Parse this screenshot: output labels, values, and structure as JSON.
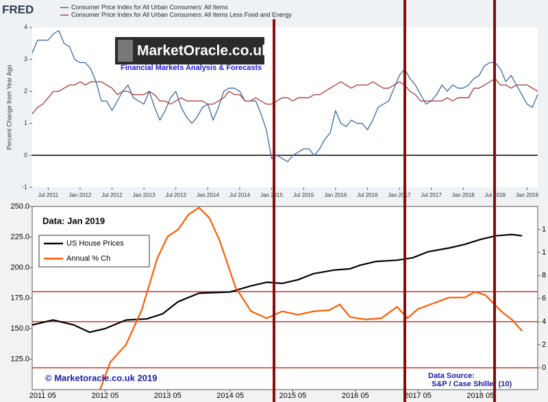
{
  "chart_data": [
    {
      "type": "line",
      "source_logo": "FRED",
      "y_label": "Percent Change from Year Ago",
      "watermark": "MarketOracle.co.uk",
      "watermark_subtitle": "Financial Markets Analysis & Forecasts",
      "x": [
        "2011-04",
        "2011-05",
        "2011-06",
        "2011-07",
        "2011-08",
        "2011-09",
        "2011-10",
        "2011-11",
        "2011-12",
        "2012-01",
        "2012-02",
        "2012-03",
        "2012-04",
        "2012-05",
        "2012-06",
        "2012-07",
        "2012-08",
        "2012-09",
        "2012-10",
        "2012-11",
        "2012-12",
        "2013-01",
        "2013-02",
        "2013-03",
        "2013-04",
        "2013-05",
        "2013-06",
        "2013-07",
        "2013-08",
        "2013-09",
        "2013-10",
        "2013-11",
        "2013-12",
        "2014-01",
        "2014-02",
        "2014-03",
        "2014-04",
        "2014-05",
        "2014-06",
        "2014-07",
        "2014-08",
        "2014-09",
        "2014-10",
        "2014-11",
        "2014-12",
        "2015-01",
        "2015-02",
        "2015-03",
        "2015-04",
        "2015-05",
        "2015-06",
        "2015-07",
        "2015-08",
        "2015-09",
        "2015-10",
        "2015-11",
        "2015-12",
        "2016-01",
        "2016-02",
        "2016-03",
        "2016-04",
        "2016-05",
        "2016-06",
        "2016-07",
        "2016-08",
        "2016-09",
        "2016-10",
        "2016-11",
        "2016-12",
        "2017-01",
        "2017-02",
        "2017-03",
        "2017-04",
        "2017-05",
        "2017-06",
        "2017-07",
        "2017-08",
        "2017-09",
        "2017-10",
        "2017-11",
        "2017-12",
        "2018-01",
        "2018-02",
        "2018-03",
        "2018-04",
        "2018-05",
        "2018-06",
        "2018-07",
        "2018-08",
        "2018-09",
        "2018-10",
        "2018-11",
        "2018-12",
        "2019-01",
        "2019-02",
        "2019-03"
      ],
      "series": [
        {
          "name": "Consumer Price Index for All Urban Consumers: All Items",
          "color": "#4572a7",
          "values": [
            3.2,
            3.6,
            3.6,
            3.6,
            3.8,
            3.9,
            3.5,
            3.4,
            3.0,
            2.9,
            2.9,
            2.7,
            2.3,
            1.7,
            1.7,
            1.4,
            1.7,
            2.0,
            2.2,
            1.8,
            1.7,
            1.6,
            2.0,
            1.5,
            1.1,
            1.4,
            1.8,
            2.0,
            1.5,
            1.2,
            1.0,
            1.2,
            1.5,
            1.6,
            1.1,
            1.5,
            2.0,
            2.1,
            2.1,
            2.0,
            1.7,
            1.7,
            1.7,
            1.3,
            0.8,
            -0.1,
            0.0,
            -0.1,
            -0.2,
            0.0,
            0.1,
            0.2,
            0.2,
            0.0,
            0.2,
            0.5,
            0.7,
            1.4,
            1.0,
            0.9,
            1.1,
            1.0,
            1.0,
            0.8,
            1.1,
            1.5,
            1.6,
            1.7,
            2.1,
            2.5,
            2.7,
            2.4,
            2.2,
            1.9,
            1.6,
            1.7,
            1.9,
            2.2,
            2.0,
            2.2,
            2.1,
            2.1,
            2.2,
            2.4,
            2.5,
            2.8,
            2.9,
            2.9,
            2.7,
            2.3,
            2.5,
            2.2,
            1.9,
            1.6,
            1.5,
            1.9
          ]
        },
        {
          "name": "Consumer Price Index for All Urban Consumers: All Items Less Food and Energy",
          "color": "#aa4643",
          "values": [
            1.3,
            1.5,
            1.6,
            1.8,
            2.0,
            2.0,
            2.1,
            2.2,
            2.2,
            2.3,
            2.2,
            2.3,
            2.3,
            2.3,
            2.2,
            2.1,
            1.9,
            2.0,
            2.0,
            1.9,
            1.9,
            1.9,
            2.0,
            1.9,
            1.7,
            1.7,
            1.6,
            1.7,
            1.8,
            1.7,
            1.7,
            1.7,
            1.7,
            1.6,
            1.6,
            1.7,
            1.8,
            2.0,
            1.9,
            1.9,
            1.7,
            1.7,
            1.8,
            1.7,
            1.6,
            1.6,
            1.7,
            1.8,
            1.8,
            1.7,
            1.8,
            1.8,
            1.8,
            1.9,
            1.9,
            2.0,
            2.1,
            2.2,
            2.3,
            2.2,
            2.1,
            2.2,
            2.2,
            2.2,
            2.3,
            2.2,
            2.1,
            2.1,
            2.2,
            2.3,
            2.2,
            2.0,
            1.9,
            1.7,
            1.7,
            1.7,
            1.7,
            1.7,
            1.8,
            1.7,
            1.8,
            1.8,
            1.8,
            2.1,
            2.1,
            2.2,
            2.3,
            2.4,
            2.2,
            2.2,
            2.1,
            2.2,
            2.2,
            2.2,
            2.1,
            2.0
          ]
        }
      ],
      "xlim": [
        "2011-04",
        "2019-03"
      ],
      "xticks": [
        {
          "value": "2011-07",
          "label": "Jul 2011"
        },
        {
          "value": "2012-01",
          "label": "Jan 2012"
        },
        {
          "value": "2012-07",
          "label": "Jul 2012"
        },
        {
          "value": "2013-01",
          "label": "Jan 2013"
        },
        {
          "value": "2013-07",
          "label": "Jul 2013"
        },
        {
          "value": "2014-01",
          "label": "Jan 2014"
        },
        {
          "value": "2014-07",
          "label": "Jul 2014"
        },
        {
          "value": "2015-01",
          "label": "Jan 2015"
        },
        {
          "value": "2015-07",
          "label": "Jul 2015"
        },
        {
          "value": "2016-01",
          "label": "Jan 2016"
        },
        {
          "value": "2016-07",
          "label": "Jul 2016"
        },
        {
          "value": "2017-01",
          "label": "Jan 2017"
        },
        {
          "value": "2017-07",
          "label": "Jul 2017"
        },
        {
          "value": "2018-01",
          "label": "Jan 2018"
        },
        {
          "value": "2018-07",
          "label": "Jul 2018"
        },
        {
          "value": "2019-01",
          "label": "Jan 2019"
        }
      ],
      "ylim": [
        -1,
        4
      ],
      "yticks": [
        -1,
        0,
        1,
        2,
        3,
        4
      ],
      "zero_line": true,
      "legend": "top-left"
    },
    {
      "type": "line",
      "annotation": "Data: Jan 2019",
      "credit": "© Marketoracle.co.uk 2019",
      "source": [
        "Data Source:",
        "S&P / Case Shiller (10)"
      ],
      "series": [
        {
          "name": "US House Prices",
          "color": "#000000",
          "x": [
            "2011-03",
            "2011-07",
            "2011-11",
            "2012-02",
            "2012-05",
            "2012-09",
            "2013-01",
            "2013-04",
            "2013-07",
            "2013-11",
            "2014-05",
            "2014-09",
            "2014-12",
            "2015-03",
            "2015-06",
            "2015-09",
            "2016-01",
            "2016-04",
            "2016-06",
            "2016-09",
            "2017-01",
            "2017-04",
            "2017-07",
            "2017-11",
            "2018-02",
            "2018-05",
            "2018-08",
            "2018-11",
            "2019-01"
          ],
          "values": [
            153,
            157,
            153,
            147,
            150,
            157,
            158,
            162,
            172,
            179,
            180,
            185,
            188,
            187,
            190,
            195,
            198,
            199,
            202,
            205,
            206,
            208,
            213,
            216,
            219,
            223,
            226,
            227,
            226
          ]
        },
        {
          "name": "Annual % Ch",
          "color": "#ff5a00",
          "axis": "y2",
          "x": [
            "2012-04",
            "2012-06",
            "2012-09",
            "2012-12",
            "2013-03",
            "2013-05",
            "2013-07",
            "2013-09",
            "2013-11",
            "2014-01",
            "2014-03",
            "2014-06",
            "2014-09",
            "2014-12",
            "2015-03",
            "2015-06",
            "2015-09",
            "2015-12",
            "2016-02",
            "2016-04",
            "2016-07",
            "2016-10",
            "2017-01",
            "2017-03",
            "2017-05",
            "2017-08",
            "2017-11",
            "2018-02",
            "2018-04",
            "2018-06",
            "2018-09",
            "2018-11",
            "2019-01"
          ],
          "values": [
            -1.9,
            0.5,
            2.0,
            5.0,
            9.5,
            11.4,
            12.0,
            13.3,
            13.9,
            13.0,
            11.0,
            7.0,
            4.9,
            4.3,
            4.9,
            4.6,
            4.9,
            5.0,
            5.5,
            4.4,
            4.2,
            4.3,
            5.3,
            4.3,
            5.1,
            5.6,
            6.1,
            6.1,
            6.6,
            6.3,
            4.9,
            4.2,
            3.2
          ]
        }
      ],
      "xlim": [
        "2011-03",
        "2019-04"
      ],
      "xticks": [
        {
          "value": "2011-05",
          "label": "2011 05"
        },
        {
          "value": "2012-05",
          "label": "2012 05"
        },
        {
          "value": "2013-05",
          "label": "2013 05"
        },
        {
          "value": "2014-05",
          "label": "2014 05"
        },
        {
          "value": "2015-05",
          "label": "2015 05"
        },
        {
          "value": "2016-05",
          "label": "2016 05"
        },
        {
          "value": "2017-05",
          "label": "2017 05"
        },
        {
          "value": "2018-05",
          "label": "2018 05"
        }
      ],
      "ylim": [
        100,
        250
      ],
      "yticks": [
        {
          "value": 125,
          "label": "125.0"
        },
        {
          "value": 150,
          "label": "150.0"
        },
        {
          "value": 175,
          "label": "175.0"
        },
        {
          "value": 200,
          "label": "200.0"
        },
        {
          "value": 225,
          "label": "225.0"
        },
        {
          "value": 250,
          "label": "250.0"
        }
      ],
      "y2lim": [
        -1.9,
        14
      ],
      "y2ticks": [
        0,
        2,
        4,
        6,
        8,
        {
          "value": 10,
          "label": "1"
        },
        {
          "value": 12,
          "label": "1"
        }
      ],
      "hlines": [
        6.6,
        4,
        0
      ],
      "hline_color": "#c0392b",
      "legend": "top-left"
    }
  ]
}
